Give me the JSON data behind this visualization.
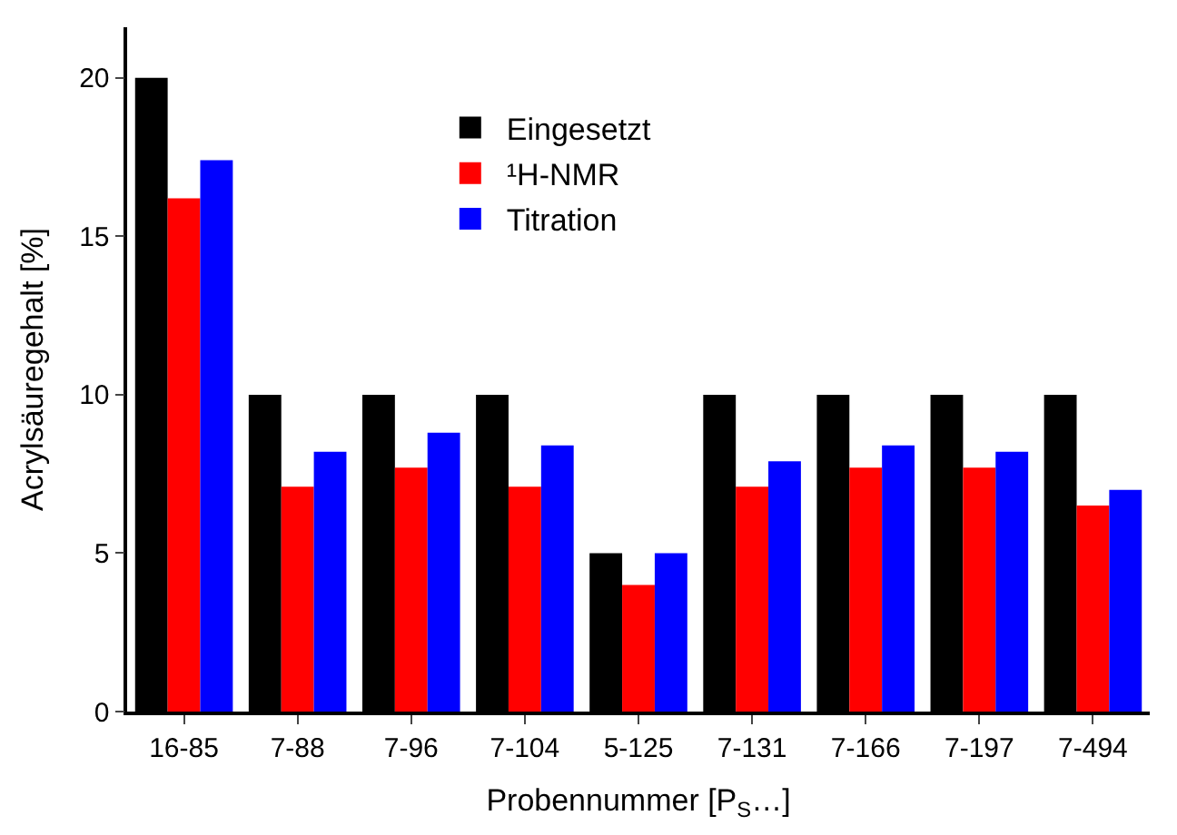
{
  "chart_data": {
    "type": "bar",
    "xlabel": "Probennummer [P$_{S}$…]",
    "ylabel": "Acrylsäuregehalt [%]",
    "categories": [
      "16-85",
      "7-88",
      "7-96",
      "7-104",
      "5-125",
      "7-131",
      "7-166",
      "7-197",
      "7-494"
    ],
    "series": [
      {
        "name": "Eingesetzt",
        "color": "#000000",
        "values": [
          20,
          10,
          10,
          10,
          5,
          10,
          10,
          10,
          10
        ]
      },
      {
        "name": "¹H-NMR",
        "color": "#ff0000",
        "values": [
          16.2,
          7.1,
          7.7,
          7.1,
          4.0,
          7.1,
          7.7,
          7.7,
          6.5
        ]
      },
      {
        "name": "Titration",
        "color": "#0000ff",
        "values": [
          17.4,
          8.2,
          8.8,
          8.4,
          5.0,
          7.9,
          8.4,
          8.2,
          7.0
        ]
      }
    ],
    "ylim": [
      0,
      21.6
    ],
    "yticks": [
      0,
      5,
      10,
      15,
      20
    ],
    "legend": "top"
  }
}
